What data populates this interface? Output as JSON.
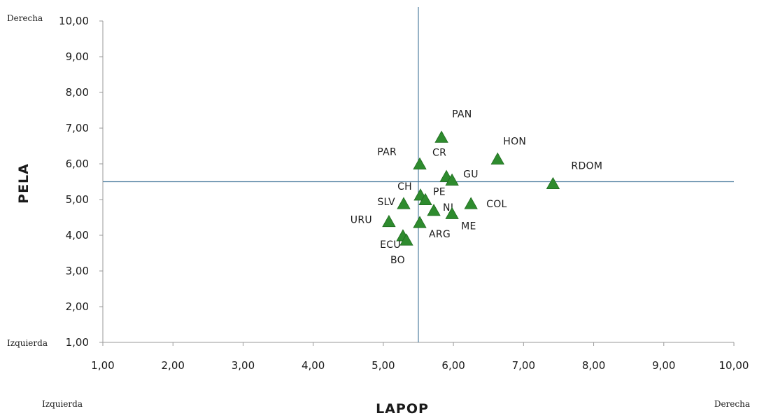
{
  "chart_data": {
    "type": "scatter",
    "xlabel": "LAPOP",
    "ylabel": "PELA",
    "xlim": [
      1,
      10
    ],
    "ylim": [
      1,
      10
    ],
    "x_ticks": [
      "1,00",
      "2,00",
      "3,00",
      "4,00",
      "5,00",
      "6,00",
      "7,00",
      "8,00",
      "9,00",
      "10,00"
    ],
    "y_ticks": [
      "1,00",
      "2,00",
      "3,00",
      "4,00",
      "5,00",
      "6,00",
      "7,00",
      "8,00",
      "9,00",
      "10,00"
    ],
    "reference_lines": {
      "x": 5.5,
      "y": 5.5
    },
    "corner_labels": {
      "y_top": "Derecha",
      "y_bottom": "Izquierda",
      "x_left": "Izquierda",
      "x_right": "Derecha"
    },
    "marker": "triangle",
    "marker_color": "#2e8b2e",
    "line_color": "#4f7fa0",
    "grid": false,
    "points": [
      {
        "label": "PAN",
        "x": 5.83,
        "y": 6.72
      },
      {
        "label": "HON",
        "x": 6.63,
        "y": 6.11
      },
      {
        "label": "RDOM",
        "x": 7.42,
        "y": 5.42
      },
      {
        "label": "PAR",
        "x": 5.52,
        "y": 5.97
      },
      {
        "label": "CR",
        "x": 5.9,
        "y": 5.62
      },
      {
        "label": "GU",
        "x": 5.98,
        "y": 5.52
      },
      {
        "label": "CH",
        "x": 5.53,
        "y": 5.1
      },
      {
        "label": "PE",
        "x": 5.6,
        "y": 4.97
      },
      {
        "label": "NI",
        "x": 5.72,
        "y": 4.67
      },
      {
        "label": "COL",
        "x": 6.25,
        "y": 4.86
      },
      {
        "label": "SLV",
        "x": 5.29,
        "y": 4.86
      },
      {
        "label": "ME",
        "x": 5.98,
        "y": 4.58
      },
      {
        "label": "URU",
        "x": 5.08,
        "y": 4.36
      },
      {
        "label": "ARG",
        "x": 5.52,
        "y": 4.33
      },
      {
        "label": "ECU",
        "x": 5.28,
        "y": 3.96
      },
      {
        "label": "BO",
        "x": 5.33,
        "y": 3.84
      }
    ]
  }
}
